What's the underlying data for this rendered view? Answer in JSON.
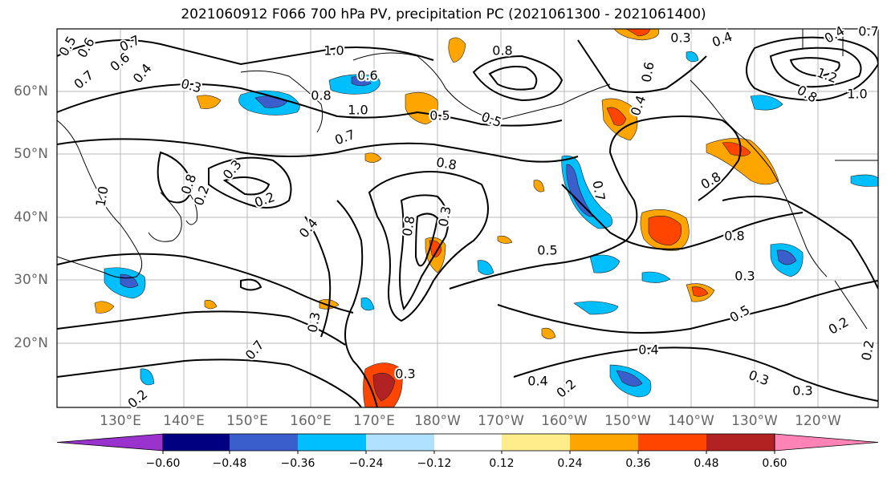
{
  "title": "2021060912 F066 700 hPa PV, precipitation PC (2021061300 - 2021061400)",
  "lat_labels": [
    "60°N",
    "50°N",
    "40°N",
    "30°N",
    "20°N"
  ],
  "lon_labels": [
    "130°E",
    "140°E",
    "150°E",
    "160°E",
    "170°E",
    "180°W",
    "170°W",
    "160°W",
    "150°W",
    "140°W",
    "130°W",
    "120°W"
  ],
  "contour_labels": [
    "0.5",
    "0.6",
    "0.7",
    "0.6",
    "0.7",
    "0.4",
    "0.3",
    "0.8",
    "0.6",
    "1.0",
    "0.4",
    "0.3",
    "0.4",
    "0.7",
    "1.2",
    "1.0",
    "0.8",
    "0.4",
    "0.5",
    "0.7",
    "1.0",
    "0.5",
    "0.6",
    "0.8",
    "0.3",
    "0.2",
    "1.0",
    "0.8",
    "0.2",
    "0.4",
    "0.8",
    "0.3",
    "0.8",
    "0.7",
    "0.8",
    "0.8",
    "0.5",
    "0.3",
    "0.5",
    "0.4",
    "0.3",
    "0.7",
    "0.2",
    "0.2",
    "0.3",
    "0.4",
    "0.2",
    "0.3",
    "0.3",
    "0.2"
  ],
  "colorbar": {
    "ticks": [
      "−0.60",
      "−0.48",
      "−0.36",
      "−0.24",
      "−0.12",
      "0.12",
      "0.24",
      "0.36",
      "0.48",
      "0.60"
    ],
    "colors": [
      "#9a32cd",
      "#000080",
      "#3a5fcd",
      "#00bfff",
      "#b0e2ff",
      "#ffffff",
      "#ffec8b",
      "#ffa500",
      "#ff4500",
      "#b22222",
      "#ff83b4"
    ]
  }
}
